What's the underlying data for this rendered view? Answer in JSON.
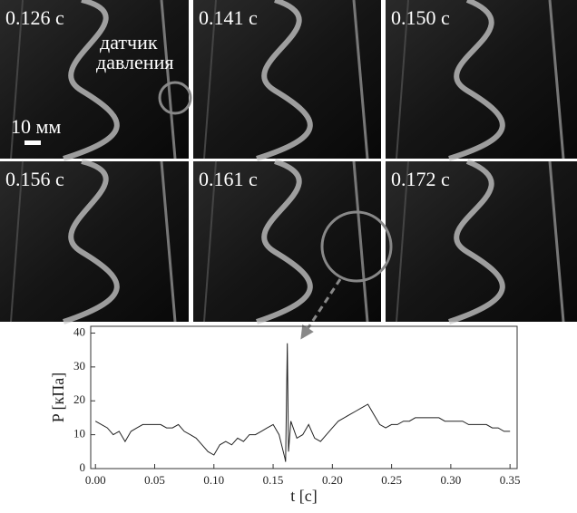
{
  "frames": [
    {
      "label": "0.126 с"
    },
    {
      "label": "0.141 с"
    },
    {
      "label": "0.150 с"
    },
    {
      "label": "0.156 с"
    },
    {
      "label": "0.161 с"
    },
    {
      "label": "0.172 с"
    }
  ],
  "sensor_label": [
    "датчик",
    "давления"
  ],
  "scale_label": "10 мм",
  "chart_data": {
    "type": "line",
    "xlabel": "t [с]",
    "ylabel": "P [кПа]",
    "color": "#222222",
    "x": [
      0,
      0.005,
      0.01,
      0.015,
      0.02,
      0.025,
      0.03,
      0.035,
      0.04,
      0.045,
      0.05,
      0.055,
      0.06,
      0.065,
      0.07,
      0.075,
      0.08,
      0.085,
      0.09,
      0.095,
      0.1,
      0.105,
      0.11,
      0.115,
      0.12,
      0.125,
      0.13,
      0.135,
      0.14,
      0.145,
      0.15,
      0.155,
      0.16,
      0.1605,
      0.162,
      0.163,
      0.165,
      0.17,
      0.175,
      0.18,
      0.185,
      0.19,
      0.195,
      0.2,
      0.205,
      0.21,
      0.215,
      0.22,
      0.225,
      0.23,
      0.235,
      0.24,
      0.245,
      0.25,
      0.255,
      0.26,
      0.265,
      0.27,
      0.275,
      0.28,
      0.285,
      0.29,
      0.295,
      0.3,
      0.305,
      0.31,
      0.315,
      0.32,
      0.325,
      0.33,
      0.335,
      0.34,
      0.345,
      0.35
    ],
    "values": [
      14,
      13,
      12,
      10,
      11,
      8,
      11,
      12,
      13,
      13,
      13,
      13,
      12,
      12,
      13,
      11,
      10,
      9,
      7,
      5,
      4,
      7,
      8,
      7,
      9,
      8,
      10,
      10,
      11,
      12,
      13,
      10,
      3,
      2,
      37,
      5,
      14,
      9,
      10,
      13,
      9,
      8,
      10,
      12,
      14,
      15,
      16,
      17,
      18,
      19,
      16,
      13,
      12,
      13,
      13,
      14,
      14,
      15,
      15,
      15,
      15,
      15,
      14,
      14,
      14,
      14,
      13,
      13,
      13,
      13,
      12,
      12,
      11,
      11
    ],
    "xlim": [
      -0.004,
      0.356
    ],
    "ylim": [
      0,
      42
    ],
    "xticks": [
      {
        "value": 0,
        "label": "0.00"
      },
      {
        "value": 0.05,
        "label": "0.05"
      },
      {
        "value": 0.1,
        "label": "0.10"
      },
      {
        "value": 0.15,
        "label": "0.15"
      },
      {
        "value": 0.2,
        "label": "0.20"
      },
      {
        "value": 0.25,
        "label": "0.25"
      },
      {
        "value": 0.3,
        "label": "0.30"
      },
      {
        "value": 0.35,
        "label": "0.35"
      }
    ],
    "yticks": [
      0,
      10,
      20,
      30,
      40
    ]
  }
}
